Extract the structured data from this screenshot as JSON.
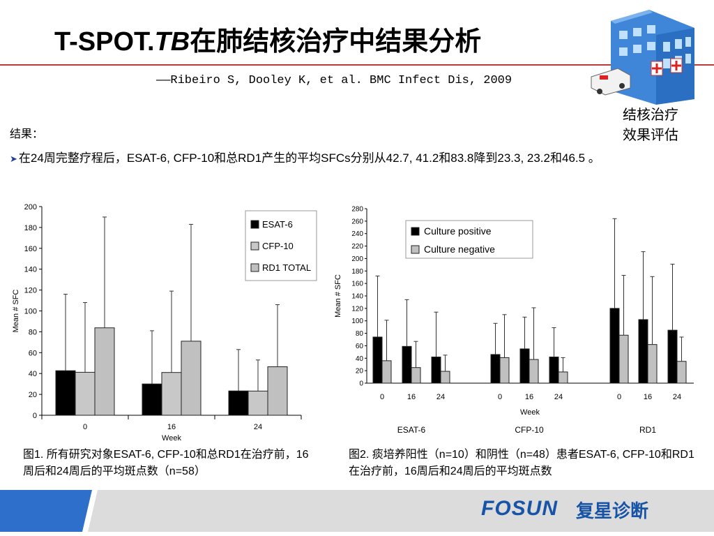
{
  "title_main": "T-SPOT.",
  "title_italic": "TB",
  "title_rest": "在肺结核治疗中结果分析",
  "reference": "——Ribeiro S, Dooley K, et al. BMC Infect Dis, 2009",
  "hospital_label_line1": "结核治疗",
  "hospital_label_line2": "效果评估",
  "results_label": "结果：",
  "bullet_text": "在24周完整疗程后，ESAT-6, CFP-10和总RD1产生的平均SFCs分别从42.7, 41.2和83.8降到23.3, 23.2和46.5 。",
  "caption1": "图1. 所有研究对象ESAT-6, CFP-10和总RD1在治疗前，16周后和24周后的平均斑点数（n=58）",
  "caption2": "图2. 痰培养阳性（n=10）和阴性（n=48）患者ESAT-6, CFP-10和RD1在治疗前，16周后和24周后的平均斑点数",
  "footer": {
    "brand": "FOSUN",
    "brand_cn": "复星诊断"
  },
  "colors": {
    "black_bar": "#000000",
    "gray_bar": "#c0c0c0",
    "accent_rule": "#b83a3a",
    "brand_blue": "#1753a6"
  },
  "chart_data": [
    {
      "type": "bar",
      "categories": [
        "0",
        "16",
        "24"
      ],
      "xlabel": "Week",
      "ylabel": "Mean # SFC",
      "ylim": [
        0,
        200
      ],
      "yticks": [
        0,
        20,
        40,
        60,
        80,
        100,
        120,
        140,
        160,
        180,
        200
      ],
      "legend_position": "top-right",
      "series": [
        {
          "name": "ESAT-6",
          "color": "#000000",
          "values": [
            42.7,
            30,
            23.3
          ],
          "error_upper": [
            116,
            81,
            63
          ]
        },
        {
          "name": "CFP-10",
          "color": "#c8c8c8",
          "values": [
            41.2,
            41,
            23.2
          ],
          "error_upper": [
            108,
            119,
            53
          ]
        },
        {
          "name": "RD1 TOTAL",
          "color": "#c0c0c0",
          "values": [
            83.8,
            71,
            46.5
          ],
          "error_upper": [
            190,
            183,
            106
          ]
        }
      ]
    },
    {
      "type": "bar",
      "groups": [
        "ESAT-6",
        "CFP-10",
        "RD1"
      ],
      "categories": [
        "0",
        "16",
        "24"
      ],
      "xlabel": "Week",
      "ylabel": "Mean # SFC",
      "ylim": [
        0,
        280
      ],
      "yticks": [
        0,
        20,
        40,
        60,
        80,
        100,
        120,
        140,
        160,
        180,
        200,
        220,
        240,
        260,
        280
      ],
      "legend_position": "top-center",
      "series": [
        {
          "name": "Culture positive",
          "color": "#000000",
          "values": [
            [
              74,
              59,
              42
            ],
            [
              46,
              55,
              42
            ],
            [
              120,
              102,
              85
            ]
          ],
          "error_upper": [
            [
              172,
              134,
              114
            ],
            [
              96,
              106,
              89
            ],
            [
              264,
              211,
              191
            ]
          ]
        },
        {
          "name": "Culture negative",
          "color": "#c0c0c0",
          "values": [
            [
              36,
              25,
              19
            ],
            [
              41,
              38,
              18
            ],
            [
              77,
              62,
              35
            ]
          ],
          "error_upper": [
            [
              101,
              67,
              45
            ],
            [
              110,
              121,
              41
            ],
            [
              173,
              171,
              74
            ]
          ]
        }
      ]
    }
  ]
}
